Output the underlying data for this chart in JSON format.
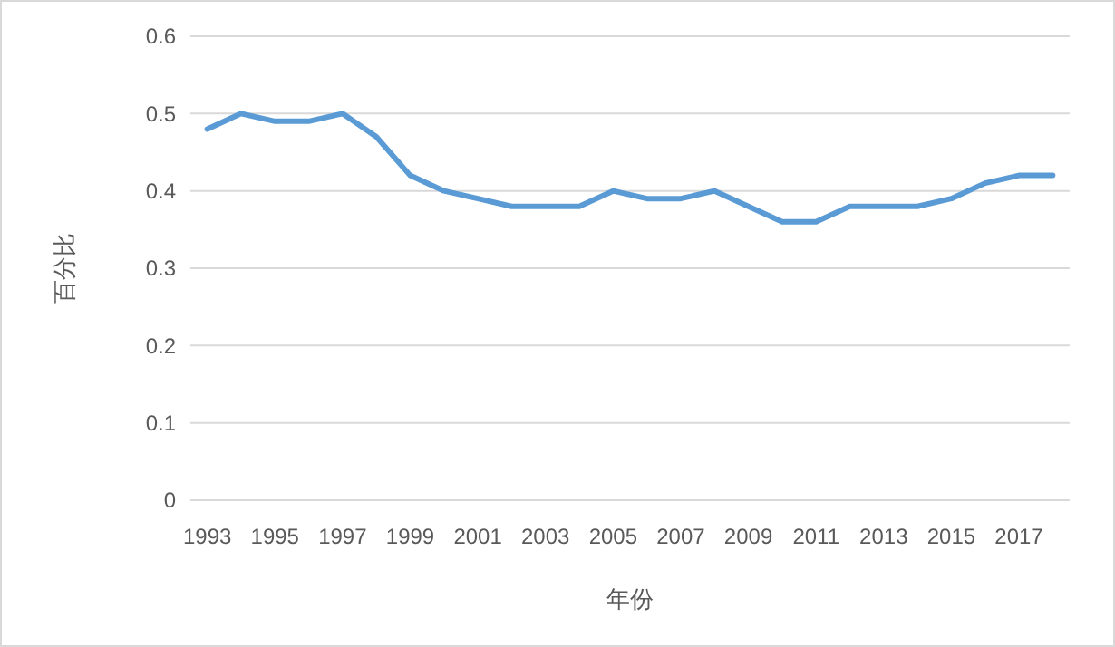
{
  "chart_data": {
    "type": "line",
    "xlabel": "年份",
    "ylabel": "百分比",
    "categories": [
      "1993",
      null,
      "1995",
      null,
      "1997",
      null,
      "1999",
      null,
      "2001",
      null,
      "2003",
      null,
      "2005",
      null,
      "2007",
      null,
      "2009",
      null,
      "2011",
      null,
      "2013",
      null,
      "2015",
      null,
      "2017",
      null
    ],
    "series": [
      {
        "color": "#5b9bd5",
        "values": [
          0.48,
          0.5,
          0.49,
          0.49,
          0.5,
          0.47,
          0.42,
          0.4,
          0.39,
          0.38,
          0.38,
          0.38,
          0.4,
          0.39,
          0.39,
          0.4,
          0.38,
          0.36,
          0.36,
          0.38,
          0.38,
          0.38,
          0.39,
          0.41,
          0.42,
          0.42
        ]
      }
    ],
    "ylim": [
      0,
      0.6
    ],
    "yticks": [
      0,
      0.1,
      0.2,
      0.3,
      0.4,
      0.5,
      0.6
    ],
    "grid": "y",
    "marker": "none",
    "line_style": "solid"
  }
}
